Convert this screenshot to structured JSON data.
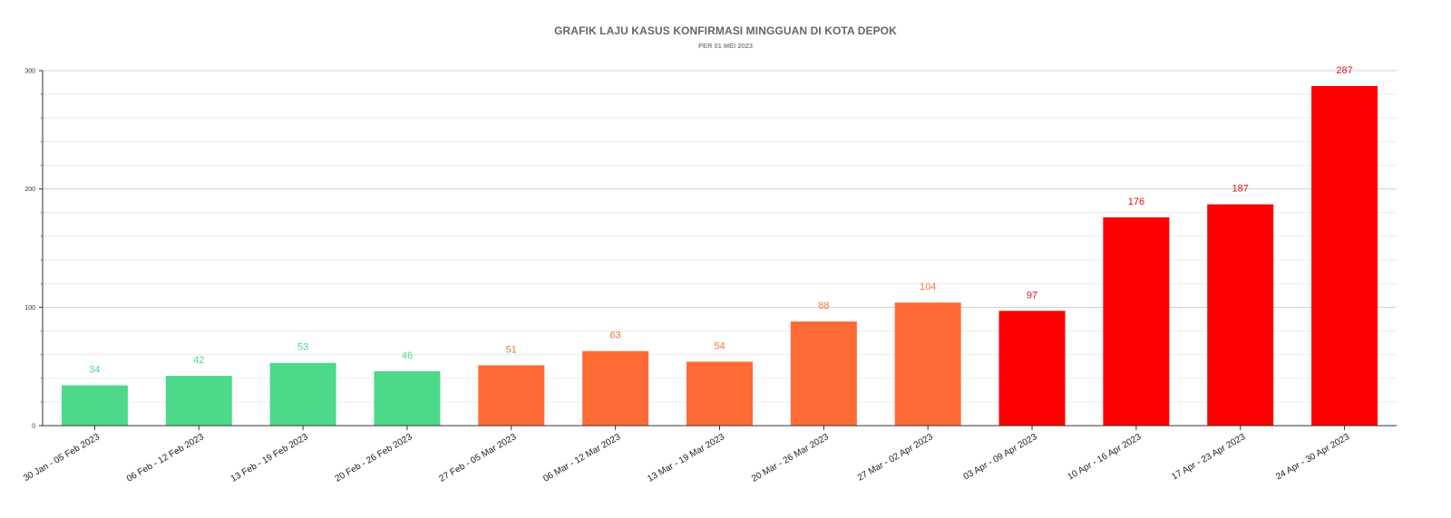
{
  "chart_data": {
    "type": "bar",
    "title": "GRAFIK LAJU KASUS KONFIRMASI MINGGUAN DI KOTA DEPOK",
    "subtitle": "PER  01 MEI 2023",
    "xlabel": "",
    "ylabel": "",
    "ylim": [
      0,
      300
    ],
    "yticks": [
      0,
      100,
      200,
      300
    ],
    "grid": true,
    "legend": "none",
    "categories": [
      "30 Jan - 05 Feb 2023",
      "06 Feb - 12 Feb 2023",
      "13 Feb - 19 Feb 2023",
      "20 Feb - 26 Feb 2023",
      "27 Feb - 05 Mar 2023",
      "06 Mar - 12 Mar 2023",
      "13 Mar - 19 Mar 2023",
      "20 Mar - 26 Mar 2023",
      "27 Mar - 02 Apr 2023",
      "03 Apr - 09 Apr 2023",
      "10 Apr - 16 Apr 2023",
      "17 Apr - 23 Apr 2023",
      "24 Apr - 30 Apr 2023"
    ],
    "values": [
      34,
      42,
      53,
      46,
      51,
      63,
      54,
      88,
      104,
      97,
      176,
      187,
      287
    ],
    "bar_colors": [
      "#4cd98a",
      "#4cd98a",
      "#4cd98a",
      "#4cd98a",
      "#ff6b35",
      "#ff6b35",
      "#ff6b35",
      "#ff6b35",
      "#ff6b35",
      "#ff0000",
      "#ff0000",
      "#ff0000",
      "#ff0000"
    ],
    "label_colors": [
      "#4cd98a",
      "#4cd98a",
      "#4cd98a",
      "#4cd98a",
      "#f07840",
      "#f07840",
      "#f07840",
      "#f07840",
      "#f07840",
      "#e0141e",
      "#e0141e",
      "#e0141e",
      "#e0141e"
    ]
  }
}
